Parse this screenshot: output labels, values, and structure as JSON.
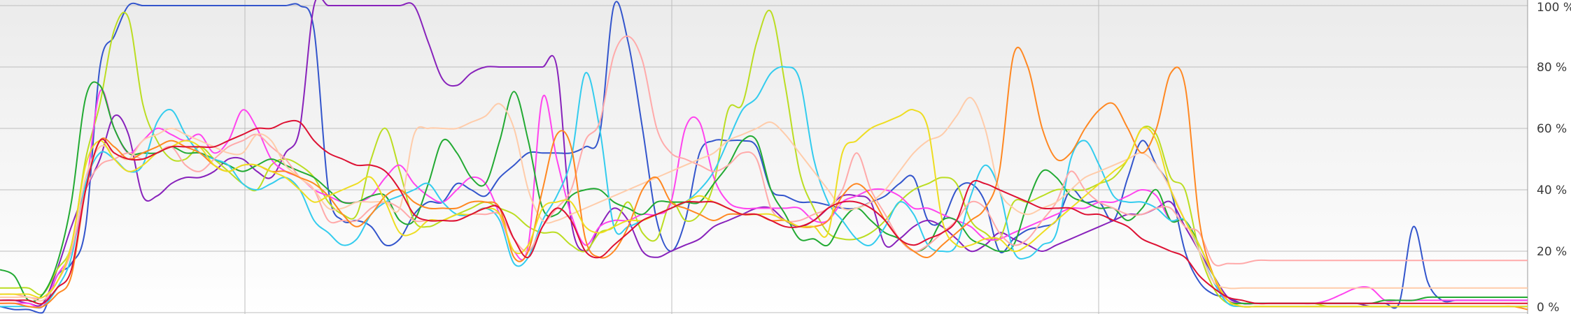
{
  "chart_data": {
    "type": "line",
    "title": "",
    "xlabel": "",
    "ylabel": "",
    "ylim": [
      0,
      100
    ],
    "y_ticks": [
      "0 %",
      "20 %",
      "40 %",
      "60 %",
      "80 %",
      "100 %"
    ],
    "grid": true,
    "legend": "none",
    "x": [
      0,
      1,
      2,
      3,
      4,
      5,
      6,
      7,
      8,
      9,
      10,
      11,
      12,
      13,
      14,
      15,
      16,
      17,
      18,
      19,
      20,
      21,
      22,
      23,
      24,
      25,
      26,
      27,
      28,
      29,
      30,
      31,
      32,
      33,
      34,
      35,
      36,
      37,
      38,
      39,
      40,
      41,
      42,
      43,
      44,
      45,
      46,
      47,
      48,
      49,
      50,
      51,
      52,
      53,
      54,
      55,
      56,
      57,
      58,
      59,
      60,
      61,
      62,
      63,
      64,
      65,
      66,
      67,
      68,
      69,
      70,
      71,
      72,
      73,
      74,
      75,
      76,
      77,
      78,
      79,
      80,
      81,
      82,
      83,
      84,
      85,
      86,
      87,
      88,
      89,
      90,
      91,
      92,
      93,
      94,
      95,
      96,
      97,
      98,
      99,
      100,
      101,
      102,
      103,
      104,
      105,
      106,
      107
    ],
    "series": [
      {
        "color": "#3355cc",
        "values": [
          2,
          1,
          1,
          0,
          12,
          16,
          28,
          80,
          90,
          100,
          100,
          100,
          100,
          100,
          100,
          100,
          100,
          100,
          100,
          100,
          100,
          100,
          92,
          40,
          30,
          30,
          28,
          22,
          24,
          32,
          36,
          36,
          42,
          40,
          38,
          44,
          48,
          52,
          52,
          52,
          52,
          54,
          58,
          100,
          88,
          60,
          30,
          20,
          30,
          52,
          56,
          56,
          56,
          54,
          40,
          38,
          36,
          36,
          35,
          34,
          34,
          36,
          38,
          42,
          44,
          30,
          30,
          40,
          42,
          36,
          20,
          24,
          27,
          28,
          30,
          40,
          36,
          36,
          30,
          44,
          56,
          48,
          40,
          20,
          10,
          6,
          5,
          3,
          3,
          3,
          3,
          3,
          3,
          3,
          3,
          3,
          3,
          3,
          3,
          28,
          10,
          4,
          4,
          4,
          4,
          4,
          4,
          4
        ]
      },
      {
        "color": "#8822bb",
        "values": [
          4,
          4,
          3,
          3,
          14,
          28,
          40,
          50,
          64,
          58,
          38,
          38,
          42,
          44,
          44,
          46,
          50,
          50,
          46,
          44,
          52,
          60,
          100,
          100,
          100,
          100,
          100,
          100,
          100,
          100,
          88,
          76,
          74,
          78,
          80,
          80,
          80,
          80,
          80,
          80,
          30,
          20,
          28,
          34,
          30,
          20,
          18,
          20,
          22,
          24,
          28,
          30,
          32,
          34,
          34,
          30,
          28,
          30,
          34,
          38,
          38,
          36,
          22,
          24,
          28,
          30,
          28,
          24,
          20,
          22,
          26,
          24,
          22,
          20,
          22,
          24,
          26,
          28,
          30,
          32,
          32,
          34,
          36,
          28,
          20,
          12,
          5,
          3,
          3,
          3,
          3,
          3,
          3,
          3,
          3,
          3,
          2,
          2,
          2,
          2,
          2,
          2,
          2,
          2,
          2,
          2,
          2,
          2
        ]
      },
      {
        "color": "#bbdd22",
        "values": [
          8,
          8,
          8,
          6,
          14,
          22,
          50,
          68,
          92,
          96,
          68,
          56,
          50,
          50,
          54,
          50,
          46,
          42,
          40,
          48,
          50,
          48,
          44,
          36,
          32,
          32,
          50,
          60,
          46,
          30,
          28,
          30,
          32,
          34,
          36,
          34,
          32,
          28,
          26,
          26,
          22,
          20,
          26,
          28,
          36,
          26,
          24,
          36,
          30,
          32,
          42,
          66,
          68,
          88,
          98,
          74,
          46,
          34,
          26,
          24,
          24,
          26,
          30,
          36,
          40,
          42,
          44,
          42,
          30,
          26,
          24,
          36,
          36,
          38,
          40,
          40,
          40,
          42,
          44,
          50,
          60,
          58,
          44,
          40,
          20,
          8,
          3,
          3,
          3,
          3,
          3,
          3,
          3,
          2,
          2,
          2,
          2,
          2,
          2,
          2,
          2,
          2,
          2,
          2,
          2,
          2,
          2,
          2
        ]
      },
      {
        "color": "#ff44ee",
        "values": [
          3,
          3,
          3,
          2,
          12,
          20,
          40,
          72,
          60,
          52,
          56,
          60,
          58,
          56,
          58,
          52,
          56,
          66,
          60,
          50,
          46,
          44,
          40,
          38,
          36,
          36,
          38,
          44,
          48,
          42,
          38,
          36,
          40,
          44,
          42,
          32,
          20,
          22,
          70,
          50,
          32,
          22,
          28,
          30,
          30,
          32,
          32,
          36,
          60,
          62,
          44,
          36,
          34,
          34,
          34,
          34,
          34,
          30,
          30,
          36,
          38,
          40,
          40,
          38,
          34,
          34,
          32,
          30,
          28,
          24,
          24,
          26,
          28,
          30,
          32,
          34,
          34,
          36,
          36,
          38,
          40,
          38,
          30,
          30,
          20,
          10,
          4,
          3,
          3,
          3,
          3,
          3,
          3,
          4,
          6,
          8,
          8,
          4,
          4,
          4,
          4,
          4,
          4,
          4,
          4,
          4,
          4,
          4
        ]
      },
      {
        "color": "#22aa33",
        "values": [
          14,
          12,
          4,
          6,
          16,
          36,
          70,
          74,
          60,
          52,
          52,
          52,
          54,
          52,
          52,
          50,
          48,
          46,
          48,
          50,
          48,
          46,
          44,
          40,
          36,
          36,
          38,
          38,
          30,
          30,
          42,
          56,
          52,
          44,
          42,
          56,
          72,
          56,
          34,
          32,
          38,
          40,
          40,
          36,
          34,
          32,
          36,
          36,
          36,
          36,
          42,
          48,
          56,
          56,
          40,
          32,
          24,
          24,
          22,
          30,
          34,
          30,
          26,
          24,
          20,
          22,
          30,
          30,
          24,
          22,
          20,
          22,
          36,
          46,
          44,
          38,
          36,
          34,
          34,
          30,
          34,
          40,
          30,
          30,
          22,
          12,
          4,
          3,
          3,
          3,
          3,
          3,
          3,
          3,
          3,
          3,
          3,
          4,
          4,
          4,
          5,
          5,
          5,
          5,
          5,
          5,
          5,
          5
        ]
      },
      {
        "color": "#33ccee",
        "values": [
          2,
          2,
          2,
          2,
          8,
          18,
          42,
          52,
          50,
          46,
          48,
          62,
          66,
          58,
          52,
          50,
          48,
          42,
          40,
          42,
          44,
          40,
          30,
          26,
          22,
          24,
          32,
          36,
          38,
          40,
          42,
          36,
          32,
          32,
          34,
          30,
          16,
          18,
          30,
          38,
          50,
          78,
          60,
          28,
          28,
          30,
          32,
          34,
          36,
          40,
          46,
          56,
          66,
          70,
          78,
          80,
          76,
          50,
          36,
          30,
          24,
          22,
          28,
          36,
          32,
          22,
          20,
          22,
          38,
          48,
          40,
          20,
          18,
          22,
          26,
          50,
          56,
          48,
          38,
          36,
          36,
          34,
          30,
          30,
          20,
          10,
          3,
          2,
          2,
          2,
          2,
          2,
          2,
          2,
          2,
          2,
          2,
          2,
          2,
          2,
          2,
          2,
          2,
          2,
          2,
          2,
          2,
          2
        ]
      },
      {
        "color": "#ffaaaa",
        "values": [
          6,
          6,
          5,
          5,
          10,
          20,
          40,
          48,
          50,
          52,
          50,
          52,
          54,
          48,
          46,
          50,
          54,
          56,
          58,
          54,
          50,
          44,
          40,
          30,
          30,
          30,
          34,
          36,
          34,
          30,
          30,
          30,
          30,
          32,
          32,
          32,
          24,
          20,
          28,
          34,
          40,
          56,
          62,
          84,
          90,
          82,
          60,
          52,
          50,
          48,
          46,
          48,
          52,
          50,
          34,
          30,
          30,
          32,
          34,
          40,
          52,
          40,
          32,
          24,
          20,
          22,
          26,
          30,
          36,
          34,
          26,
          22,
          24,
          30,
          36,
          46,
          40,
          36,
          34,
          32,
          32,
          34,
          34,
          28,
          26,
          16,
          16,
          16,
          17,
          17,
          17,
          17,
          17,
          17,
          17,
          17,
          17,
          17,
          17,
          17,
          17,
          17,
          17,
          17,
          17,
          17,
          17,
          17
        ]
      },
      {
        "color": "#ffccaa",
        "values": [
          5,
          5,
          5,
          4,
          10,
          22,
          44,
          54,
          52,
          50,
          56,
          58,
          60,
          58,
          56,
          54,
          52,
          52,
          58,
          56,
          48,
          44,
          40,
          34,
          34,
          36,
          36,
          36,
          34,
          58,
          60,
          60,
          60,
          62,
          64,
          68,
          60,
          40,
          30,
          30,
          32,
          34,
          36,
          38,
          40,
          42,
          44,
          46,
          48,
          50,
          52,
          56,
          58,
          60,
          62,
          58,
          52,
          46,
          40,
          34,
          34,
          36,
          40,
          46,
          52,
          56,
          58,
          64,
          70,
          60,
          40,
          34,
          32,
          34,
          36,
          40,
          44,
          46,
          48,
          50,
          52,
          48,
          40,
          30,
          20,
          10,
          8,
          8,
          8,
          8,
          8,
          8,
          8,
          8,
          8,
          8,
          8,
          8,
          8,
          8,
          8,
          8,
          8,
          8,
          8,
          8,
          8,
          8
        ]
      },
      {
        "color": "#ff8822",
        "values": [
          3,
          3,
          2,
          2,
          6,
          12,
          40,
          56,
          54,
          50,
          52,
          54,
          56,
          54,
          52,
          48,
          46,
          48,
          48,
          46,
          46,
          44,
          42,
          38,
          32,
          28,
          32,
          38,
          40,
          36,
          34,
          34,
          34,
          36,
          36,
          34,
          18,
          20,
          40,
          58,
          54,
          24,
          18,
          20,
          28,
          40,
          44,
          36,
          34,
          32,
          30,
          32,
          32,
          32,
          30,
          30,
          28,
          28,
          30,
          38,
          42,
          38,
          30,
          24,
          20,
          18,
          22,
          26,
          30,
          34,
          46,
          84,
          80,
          60,
          50,
          52,
          60,
          66,
          68,
          60,
          52,
          60,
          78,
          74,
          30,
          12,
          4,
          2,
          2,
          2,
          2,
          2,
          2,
          2,
          2,
          2,
          2,
          2,
          2,
          2,
          2,
          2,
          2,
          2,
          2,
          2,
          2,
          1
        ]
      },
      {
        "color": "#eedd22",
        "values": [
          6,
          6,
          6,
          5,
          10,
          22,
          48,
          56,
          50,
          46,
          48,
          52,
          54,
          56,
          54,
          48,
          46,
          48,
          48,
          46,
          44,
          40,
          36,
          38,
          40,
          42,
          44,
          36,
          26,
          26,
          30,
          30,
          32,
          32,
          34,
          32,
          20,
          22,
          34,
          36,
          36,
          28,
          26,
          28,
          30,
          30,
          32,
          34,
          36,
          38,
          36,
          34,
          32,
          32,
          32,
          30,
          28,
          28,
          26,
          52,
          56,
          60,
          62,
          64,
          66,
          60,
          30,
          22,
          22,
          24,
          24,
          20,
          22,
          26,
          30,
          34,
          38,
          42,
          46,
          50,
          60,
          56,
          40,
          30,
          22,
          12,
          4,
          2,
          2,
          2,
          2,
          2,
          2,
          2,
          2,
          2,
          2,
          2,
          2,
          2,
          2,
          2,
          2,
          2,
          2,
          2,
          2,
          2
        ]
      },
      {
        "color": "#dd1133",
        "values": [
          4,
          4,
          4,
          3,
          8,
          14,
          40,
          56,
          52,
          50,
          50,
          52,
          54,
          54,
          54,
          54,
          56,
          58,
          60,
          60,
          62,
          62,
          56,
          52,
          50,
          48,
          48,
          46,
          40,
          32,
          30,
          30,
          30,
          32,
          34,
          34,
          24,
          18,
          28,
          34,
          30,
          20,
          18,
          22,
          26,
          30,
          32,
          34,
          36,
          36,
          36,
          34,
          32,
          32,
          30,
          28,
          28,
          30,
          34,
          36,
          36,
          34,
          30,
          24,
          22,
          24,
          26,
          30,
          42,
          42,
          40,
          38,
          36,
          34,
          34,
          34,
          32,
          32,
          30,
          28,
          24,
          22,
          20,
          18,
          12,
          8,
          5,
          4,
          3,
          3,
          3,
          3,
          3,
          3,
          3,
          3,
          3,
          3,
          3,
          3,
          3,
          3,
          3,
          3,
          3,
          3,
          3,
          3
        ]
      }
    ]
  }
}
